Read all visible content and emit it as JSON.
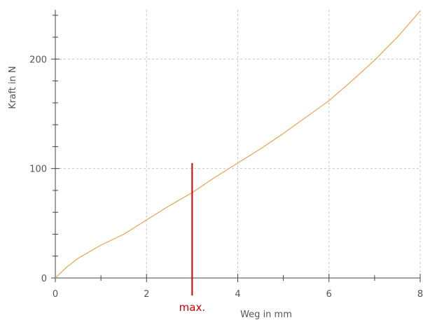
{
  "chart_data": {
    "type": "line",
    "title": "",
    "xlabel": "Weg in mm",
    "ylabel": "Kraft in N",
    "xlim": [
      0,
      8
    ],
    "ylim": [
      0,
      245
    ],
    "grid": true,
    "x_major_ticks": [
      0,
      2,
      4,
      6,
      8
    ],
    "x_tick_labels": [
      "0",
      "2",
      "4",
      "6",
      "8"
    ],
    "y_major_ticks": [
      0,
      100,
      200
    ],
    "y_tick_labels": [
      "0",
      "100",
      "200"
    ],
    "x_minor_step": 1,
    "y_minor_step": 20,
    "series": [
      {
        "color": "#e8a44a",
        "x": [
          0,
          0.25,
          0.5,
          1,
          1.5,
          2,
          2.5,
          3,
          3.5,
          4,
          4.5,
          5,
          5.5,
          6,
          6.5,
          7,
          7.5,
          8
        ],
        "y": [
          0,
          10,
          18,
          30,
          40,
          53,
          66,
          78,
          92,
          105,
          118,
          132,
          147,
          162,
          180,
          199,
          220,
          244
        ]
      }
    ],
    "annotations": [
      {
        "type": "vline",
        "x": 3,
        "y_top": 105,
        "label": "max.",
        "color": "#d40000"
      }
    ]
  }
}
